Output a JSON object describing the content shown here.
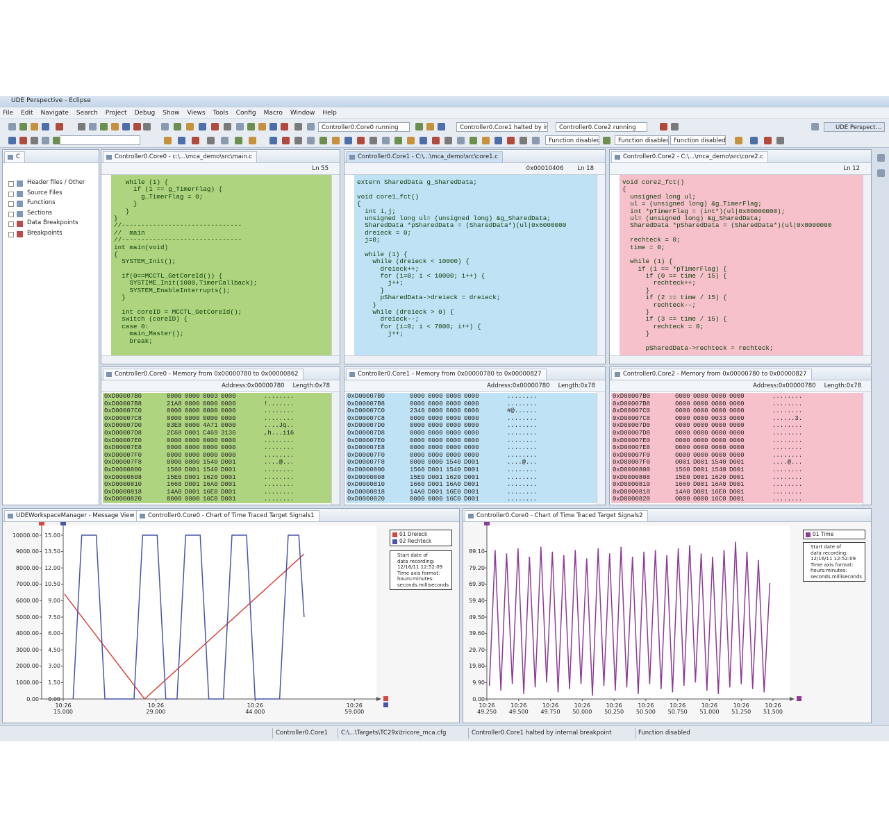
{
  "window": {
    "title": "UDE Perspective - Eclipse",
    "menu": [
      "File",
      "Edit",
      "Navigate",
      "Search",
      "Project",
      "Debug",
      "Show",
      "Views",
      "Tools",
      "Config",
      "Macro",
      "Window",
      "Help"
    ],
    "core_status": [
      "Controller0.Core0 running",
      "Controller0.Core1 halted by int",
      "Controller0.Core2 running"
    ],
    "perspective": "UDE Perspect...",
    "function_status": [
      "Function disabled",
      "Function disabled",
      "Function disabled"
    ]
  },
  "tree": {
    "tab": "C",
    "items": [
      "Header files / Other",
      "Source Files",
      "Functions",
      "Sections",
      "Data Breakpoints",
      "Breakpoints"
    ]
  },
  "editors": [
    {
      "title": "Controller0.Core0 - c:\\...\\mca_demo\\src\\main.c",
      "status": [
        "Ln 55"
      ],
      "lines": [
        "   while (1) {",
        "     if (1 == g_TimerFlag) {",
        "       g_TimerFlag = 0;",
        "     }",
        "   }",
        "}",
        "//-------------------------------",
        "//  main",
        "//-------------------------------",
        "int main(void)",
        "{",
        "  SYSTEM_Init();",
        "",
        "  if(0==MCCTL_GetCoreId()) {",
        "    SYSTIME_Init(1000,TimerCallback);",
        "    SYSTEM_EnableInterrupts();",
        "  }",
        "",
        "  int coreID = MCCTL_GetCoreId();",
        "  switch (coreID) {",
        "  case 0:",
        "    main_Master();",
        "    break;"
      ]
    },
    {
      "title": "Controller0.Core1 - C:\\...\\mca_demo\\src\\core1.c",
      "status": [
        "0x00010406",
        "Ln 18"
      ],
      "lines": [
        "extern SharedData g_SharedData;",
        "",
        "void core1_fct()",
        "{",
        "  int i,j;",
        "  unsigned long ul= (unsigned long) &g_SharedData;",
        "  SharedData *pSharedData = (SharedData*)(ul|0x6000000",
        "  dreieck = 0;",
        "  j=0;",
        "",
        "  while (1) {",
        "    while (dreieck < 10000) {",
        "      dreieck++;",
        "      for (i=0; i < 10000; i++) {",
        "        j++;",
        "      }",
        "      pSharedData->dreieck = dreieck;",
        "    }",
        "    while (dreieck > 0) {",
        "      dreieck--;",
        "      for (i=0; i < 7000; i++) {",
        "        j++;"
      ]
    },
    {
      "title": "Controller0.Core2 - C:\\...\\mca_demo\\src\\core2.c",
      "status": [
        "Ln 12"
      ],
      "lines": [
        "void core2_fct()",
        "{",
        "  unsigned long ul;",
        "  ul = (unsigned long) &g_TimerFlag;",
        "  int *pTimerFlag = (int*)(ul|0x80000000);",
        "  ul= (unsigned long) &g_SharedData;",
        "  SharedData *pSharedData = (SharedData*)(ul|0x8000000",
        "",
        "  rechteck = 0;",
        "  time = 0;",
        "",
        "  while (1) {",
        "    if (1 == *pTimerFlag) {",
        "      if (0 == time / 15) {",
        "        rechteck++;",
        "      }",
        "      if (2 == time / 15) {",
        "        rechteck--;",
        "      }",
        "      if (3 == time / 15) {",
        "        rechteck = 0;",
        "      }",
        "",
        "      pSharedData->rechteck = rechteck;"
      ]
    }
  ],
  "memory": [
    {
      "title": "Controller0.Core0 - Memory from 0x00000780 to 0x00000862",
      "address": "Address:0x00000780",
      "length": "Length:0x78",
      "rows": [
        [
          "0xD00007B0",
          "0000",
          "0000",
          "0003",
          "0000",
          "........"
        ],
        [
          "0xD00007B8",
          "21A8",
          "0000",
          "0000",
          "0000",
          "!......."
        ],
        [
          "0xD00007C0",
          "0000",
          "0000",
          "0000",
          "0000",
          "........"
        ],
        [
          "0xD00007C8",
          "0000",
          "0000",
          "0000",
          "0000",
          "........"
        ],
        [
          "0xD00007D0",
          "03E8",
          "0000",
          "4A71",
          "0000",
          "....Jq.."
        ],
        [
          "0xD00007D8",
          "2C68",
          "D001",
          "C469",
          "3136",
          ",h...i16"
        ],
        [
          "0xD00007E0",
          "0000",
          "0000",
          "0000",
          "0000",
          "........"
        ],
        [
          "0xD00007E8",
          "0000",
          "0000",
          "0000",
          "0000",
          "........"
        ],
        [
          "0xD00007F0",
          "0000",
          "0000",
          "0000",
          "0000",
          "........"
        ],
        [
          "0xD00007F8",
          "0000",
          "0000",
          "1540",
          "D001",
          "....@..."
        ],
        [
          "0xD0000800",
          "1560",
          "D001",
          "1540",
          "D001",
          "........"
        ],
        [
          "0xD0000808",
          "15E0",
          "D001",
          "1620",
          "D001",
          "........"
        ],
        [
          "0xD0000810",
          "1660",
          "D001",
          "16A0",
          "D001",
          "........"
        ],
        [
          "0xD0000818",
          "14A0",
          "D001",
          "16E0",
          "D001",
          "........"
        ],
        [
          "0xD0000820",
          "0000",
          "0000",
          "16C0",
          "D001",
          "........"
        ]
      ]
    },
    {
      "title": "Controller0.Core1 - Memory from 0x00000780 to 0x00000827",
      "address": "Address:0x00000780",
      "length": "Length:0x78",
      "rows": [
        [
          "0xD00007B0",
          "0000",
          "0000",
          "0000",
          "0000",
          "........"
        ],
        [
          "0xD00007B8",
          "0000",
          "0000",
          "0000",
          "0000",
          "........"
        ],
        [
          "0xD00007C0",
          "2340",
          "0000",
          "0000",
          "0000",
          "#@......"
        ],
        [
          "0xD00007C8",
          "0000",
          "0000",
          "0000",
          "0000",
          "........"
        ],
        [
          "0xD00007D0",
          "0000",
          "0000",
          "0000",
          "0000",
          "........"
        ],
        [
          "0xD00007D8",
          "0000",
          "0000",
          "0000",
          "0000",
          "........"
        ],
        [
          "0xD00007E0",
          "0000",
          "0000",
          "0000",
          "0000",
          "........"
        ],
        [
          "0xD00007E8",
          "0000",
          "0000",
          "0000",
          "0000",
          "........"
        ],
        [
          "0xD00007F0",
          "0000",
          "0000",
          "0000",
          "0000",
          "........"
        ],
        [
          "0xD00007F8",
          "0000",
          "0000",
          "1540",
          "D001",
          "....@..."
        ],
        [
          "0xD0000800",
          "1560",
          "D001",
          "1540",
          "D001",
          "........"
        ],
        [
          "0xD0000808",
          "15E0",
          "D001",
          "1620",
          "D001",
          "........"
        ],
        [
          "0xD0000810",
          "1660",
          "D001",
          "16A0",
          "D001",
          "........"
        ],
        [
          "0xD0000818",
          "14A0",
          "D001",
          "16E0",
          "D001",
          "........"
        ],
        [
          "0xD0000820",
          "0000",
          "0000",
          "16C0",
          "D001",
          "........"
        ]
      ]
    },
    {
      "title": "Controller0.Core2 - Memory from 0x00000780 to 0x00000827",
      "address": "Address:0x00000780",
      "length": "Length:0x78",
      "rows": [
        [
          "0xD00007B0",
          "0000",
          "0000",
          "0000",
          "0000",
          "........"
        ],
        [
          "0xD00007B8",
          "0000",
          "0000",
          "0000",
          "0000",
          "........"
        ],
        [
          "0xD00007C0",
          "0000",
          "0000",
          "0000",
          "0000",
          "........"
        ],
        [
          "0xD00007C8",
          "0000",
          "0000",
          "0033",
          "0000",
          "......3."
        ],
        [
          "0xD00007D0",
          "0000",
          "0000",
          "0000",
          "0000",
          "........"
        ],
        [
          "0xD00007D8",
          "0000",
          "0000",
          "0000",
          "0000",
          "........"
        ],
        [
          "0xD00007E0",
          "0000",
          "0000",
          "0000",
          "0000",
          "........"
        ],
        [
          "0xD00007E8",
          "0000",
          "0000",
          "0000",
          "0000",
          "........"
        ],
        [
          "0xD00007F0",
          "0000",
          "0000",
          "0000",
          "0000",
          "........"
        ],
        [
          "0xD00007F8",
          "0001",
          "D001",
          "1540",
          "D001",
          "....@..."
        ],
        [
          "0xD0000800",
          "1560",
          "D001",
          "1540",
          "D001",
          "........"
        ],
        [
          "0xD0000808",
          "15E0",
          "D001",
          "1620",
          "D001",
          "........"
        ],
        [
          "0xD0000810",
          "1660",
          "D001",
          "16A0",
          "D001",
          "........"
        ],
        [
          "0xD0000818",
          "14A0",
          "D001",
          "16E0",
          "D001",
          "........"
        ],
        [
          "0xD0000820",
          "0000",
          "0000",
          "16C0",
          "D001",
          "........"
        ]
      ]
    }
  ],
  "bottom_tabs": {
    "left": [
      "UDEWorkspaceManager - Message View",
      "Controller0.Core0 - Chart of Time Traced Target Signals1"
    ],
    "right": [
      "Controller0.Core0 - Chart of Time Traced Target Signals2"
    ]
  },
  "chart_data": [
    {
      "type": "line",
      "annotation": "Start date of\ndata recording:\n12/16/11 12:52:09\nTime axis format:\nhours:minutes:\nseconds.milliseconds",
      "xlim": [
        15,
        61.7
      ],
      "xticks": [
        {
          "value": 15,
          "label": "10:26\n15.000"
        },
        {
          "value": 29,
          "label": "10:26\n29.000"
        },
        {
          "value": 44,
          "label": "10:26\n44.000"
        },
        {
          "value": 59,
          "label": "10:26\n59.000"
        }
      ],
      "ylim": [
        0,
        10000
      ],
      "yticks": [
        {
          "value": 0,
          "label": "0.00"
        },
        {
          "value": 1000,
          "label": "1000.00"
        },
        {
          "value": 2000,
          "label": "2000.00"
        },
        {
          "value": 3000,
          "label": "3000.00"
        },
        {
          "value": 4000,
          "label": "4000.00"
        },
        {
          "value": 5000,
          "label": "5000.00"
        },
        {
          "value": 6000,
          "label": "6000.00"
        },
        {
          "value": 7000,
          "label": "7000.00"
        },
        {
          "value": 8000,
          "label": "8000.00"
        },
        {
          "value": 9000,
          "label": "9000.00"
        },
        {
          "value": 10000,
          "label": "10000.00"
        }
      ],
      "y2lim": [
        0,
        15
      ],
      "y2ticks": [
        {
          "value": 0,
          "label": "0.00"
        },
        {
          "value": 1.5,
          "label": "1.50"
        },
        {
          "value": 3,
          "label": "3.00"
        },
        {
          "value": 4.5,
          "label": "4.50"
        },
        {
          "value": 6,
          "label": "6.00"
        },
        {
          "value": 7.5,
          "label": "7.50"
        },
        {
          "value": 9,
          "label": "9.00"
        },
        {
          "value": 10.5,
          "label": "10.50"
        },
        {
          "value": 12,
          "label": "12.00"
        },
        {
          "value": 13.5,
          "label": "13.50"
        },
        {
          "value": 15,
          "label": "15.00"
        }
      ],
      "series": [
        {
          "name": "01 Dreieck",
          "color": "#d9463e",
          "x": [
            15.2,
            27.3,
            51.4
          ],
          "values": [
            6400,
            0,
            8850
          ]
        },
        {
          "name": "02 Rechteck",
          "color": "#4a55a8",
          "axis": "y2",
          "x": [
            16.5,
            17.8,
            20.0,
            21.3,
            25.7,
            27.0,
            29.2,
            30.5,
            32.2,
            33.5,
            35.7,
            37.0,
            39.2,
            40.5,
            42.7,
            44.0,
            47.7,
            49.0,
            50.6,
            51.4
          ],
          "values": [
            0,
            15,
            15,
            0,
            0,
            15,
            15,
            0,
            0,
            15,
            15,
            0,
            0,
            15,
            15,
            0,
            0,
            15,
            15,
            7.5
          ]
        }
      ]
    },
    {
      "type": "line",
      "annotation": "Start date of\ndata recording:\n12/16/11 12:52:09\nTime axis format:\nhours:minutes:\nseconds.milliseconds",
      "xlim": [
        49.25,
        51.62
      ],
      "xticks": [
        {
          "value": 49.25,
          "label": "10:26\n49.250"
        },
        {
          "value": 49.5,
          "label": "10:26\n49.500"
        },
        {
          "value": 49.75,
          "label": "10:26\n49.750"
        },
        {
          "value": 50,
          "label": "10:26\n50.000"
        },
        {
          "value": 50.25,
          "label": "10:26\n50.250"
        },
        {
          "value": 50.5,
          "label": "10:26\n50.500"
        },
        {
          "value": 50.75,
          "label": "10:26\n50.750"
        },
        {
          "value": 51,
          "label": "10:26\n51.000"
        },
        {
          "value": 51.25,
          "label": "10:26\n51.250"
        },
        {
          "value": 51.5,
          "label": "10:26\n51.500"
        }
      ],
      "ylim": [
        0,
        99
      ],
      "yticks": [
        {
          "value": 0,
          "label": "0.00"
        },
        {
          "value": 9.9,
          "label": "9.90"
        },
        {
          "value": 19.8,
          "label": "19.80"
        },
        {
          "value": 29.7,
          "label": "29.70"
        },
        {
          "value": 39.6,
          "label": "39.60"
        },
        {
          "value": 49.5,
          "label": "49.50"
        },
        {
          "value": 59.4,
          "label": "59.40"
        },
        {
          "value": 69.3,
          "label": "69.30"
        },
        {
          "value": 79.2,
          "label": "79.20"
        },
        {
          "value": 89.1,
          "label": "89.10"
        }
      ],
      "series": [
        {
          "name": "01 Time",
          "color": "#8e3b97",
          "x": [
            49.27,
            49.315,
            49.36,
            49.405,
            49.45,
            49.495,
            49.54,
            49.585,
            49.63,
            49.675,
            49.72,
            49.765,
            49.81,
            49.855,
            49.9,
            49.945,
            49.99,
            50.035,
            50.08,
            50.125,
            50.17,
            50.215,
            50.26,
            50.305,
            50.35,
            50.395,
            50.44,
            50.485,
            50.53,
            50.575,
            50.62,
            50.665,
            50.71,
            50.755,
            50.8,
            50.845,
            50.89,
            50.935,
            50.98,
            51.025,
            51.07,
            51.115,
            51.16,
            51.205,
            51.25,
            51.295,
            51.34,
            51.385,
            51.43,
            51.475
          ],
          "values": [
            8,
            90,
            5,
            88,
            9,
            91,
            3,
            86,
            7,
            92,
            10,
            89,
            4,
            87,
            6,
            90,
            9,
            85,
            2,
            91,
            8,
            88,
            5,
            92,
            7,
            86,
            3,
            89,
            9,
            90,
            6,
            87,
            4,
            91,
            8,
            93,
            10,
            88,
            5,
            86,
            3,
            90,
            7,
            95,
            9,
            89,
            6,
            84,
            4,
            70
          ]
        }
      ]
    }
  ],
  "status_bar": [
    "Controller0.Core1",
    "C:\\...\\Targets\\TC29x\\tricore_mca.cfg",
    "Controller0.Core1 halted by internal breakpoint",
    "Function disabled"
  ]
}
